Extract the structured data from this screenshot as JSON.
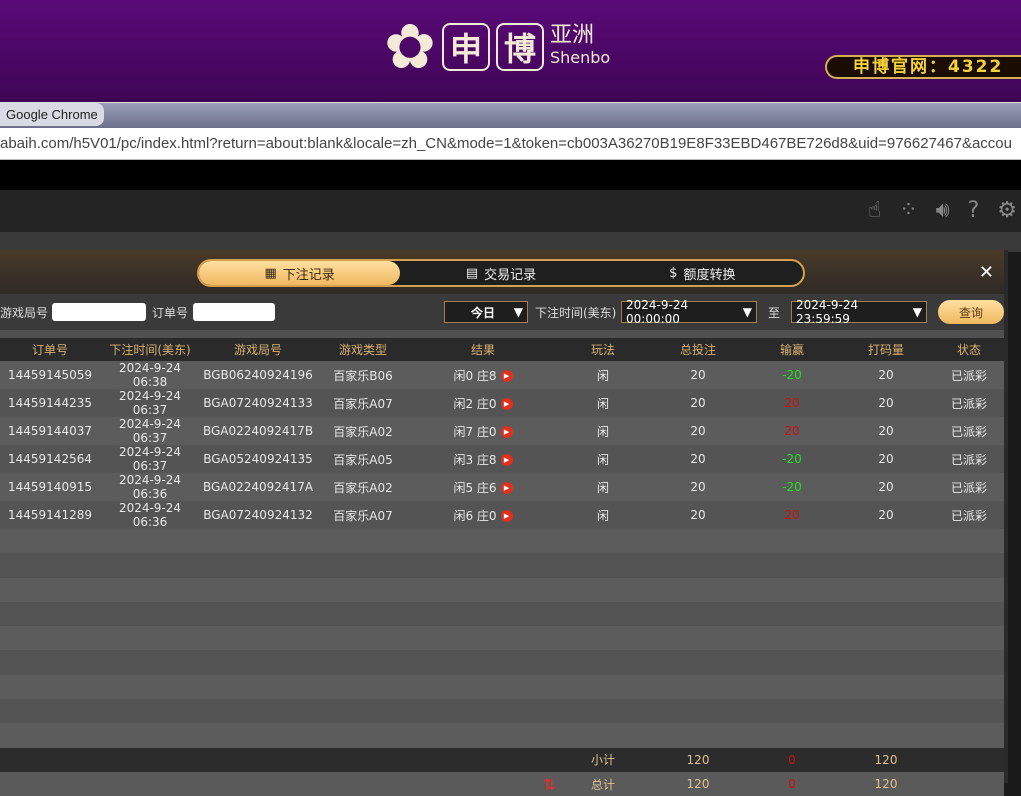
{
  "banner": {
    "logo_cn1": "申",
    "logo_cn2": "博",
    "logo_cn3": "亚洲",
    "logo_en": "Shenbo",
    "site_label": "申博官网：4322"
  },
  "browser": {
    "title": "Google Chrome",
    "url": "abaih.com/h5V01/pc/index.html?return=about:blank&locale=zh_CN&mode=1&token=cb003A36270B19E8F33EBD467BE726d8&uid=976627467&accou"
  },
  "toolbar": {
    "icons": [
      "hand-icon",
      "dots-icon",
      "volume-icon",
      "help-icon",
      "gear-icon"
    ]
  },
  "tabs": [
    {
      "label": "下注记录",
      "icon": "calendar-icon",
      "active": true
    },
    {
      "label": "交易记录",
      "icon": "clipboard-icon"
    },
    {
      "label": "额度转换",
      "icon": "coins-icon"
    }
  ],
  "filter": {
    "round_label": "游戏局号",
    "round_value": "",
    "order_label": "订单号",
    "order_value": "",
    "period": "今日",
    "time_label": "下注时间(美东)",
    "start": "2024-9-24 00:00:00",
    "to_label": "至",
    "end": "2024-9-24 23:59:59",
    "query": "查询"
  },
  "columns": [
    "订单号",
    "下注时间(美东)",
    "游戏局号",
    "游戏类型",
    "结果",
    "玩法",
    "总投注",
    "输赢",
    "打码量",
    "状态"
  ],
  "rows": [
    [
      "14459145059",
      "2024-9-24 06:38",
      "BGB06240924196",
      "百家乐B06",
      "闲0 庄8",
      "闲",
      "20",
      "-20",
      "20",
      "已派彩"
    ],
    [
      "14459144235",
      "2024-9-24 06:37",
      "BGA07240924133",
      "百家乐A07",
      "闲2 庄0",
      "闲",
      "20",
      "20",
      "20",
      "已派彩"
    ],
    [
      "14459144037",
      "2024-9-24 06:37",
      "BGA0224092417B",
      "百家乐A02",
      "闲7 庄0",
      "闲",
      "20",
      "20",
      "20",
      "已派彩"
    ],
    [
      "14459142564",
      "2024-9-24 06:37",
      "BGA05240924135",
      "百家乐A05",
      "闲3 庄8",
      "闲",
      "20",
      "-20",
      "20",
      "已派彩"
    ],
    [
      "14459140915",
      "2024-9-24 06:36",
      "BGA0224092417A",
      "百家乐A02",
      "闲5 庄6",
      "闲",
      "20",
      "-20",
      "20",
      "已派彩"
    ],
    [
      "14459141289",
      "2024-9-24 06:36",
      "BGA07240924132",
      "百家乐A07",
      "闲6 庄0",
      "闲",
      "20",
      "20",
      "20",
      "已派彩"
    ]
  ],
  "subtotal": {
    "label": "小计",
    "bet": "120",
    "win": "0",
    "code": "120"
  },
  "total": {
    "label": "总计",
    "bet": "120",
    "win": "0",
    "code": "120"
  },
  "colors": {
    "win": "#22dd22",
    "loss": "#cc1010",
    "accent": "#f0b860"
  }
}
